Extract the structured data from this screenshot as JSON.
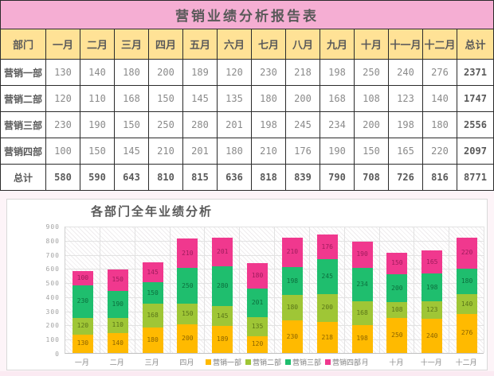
{
  "table": {
    "title": "营销业绩分析报告表",
    "columns": [
      "部门",
      "一月",
      "二月",
      "三月",
      "四月",
      "五月",
      "六月",
      "七月",
      "八月",
      "九月",
      "十月",
      "十一月",
      "十二月",
      "总计"
    ],
    "rows": [
      {
        "label": "营销一部",
        "values": [
          130,
          140,
          180,
          200,
          189,
          120,
          230,
          218,
          198,
          250,
          240,
          276
        ],
        "total": 2371
      },
      {
        "label": "营销二部",
        "values": [
          120,
          110,
          168,
          150,
          145,
          135,
          180,
          200,
          168,
          108,
          123,
          140
        ],
        "total": 1747
      },
      {
        "label": "营销三部",
        "values": [
          230,
          190,
          150,
          250,
          280,
          201,
          198,
          245,
          234,
          200,
          198,
          180
        ],
        "total": 2556
      },
      {
        "label": "营销四部",
        "values": [
          100,
          150,
          145,
          210,
          201,
          180,
          210,
          176,
          190,
          150,
          165,
          220
        ],
        "total": 2097
      }
    ],
    "grand_total_row": {
      "label": "总计",
      "values": [
        580,
        590,
        643,
        810,
        815,
        636,
        818,
        839,
        790,
        708,
        726,
        816
      ],
      "total": 8771
    }
  },
  "chart_data": {
    "type": "bar",
    "stacked": true,
    "title": "各部门全年业绩分析",
    "categories": [
      "一月",
      "二月",
      "三月",
      "四月",
      "五月",
      "六月",
      "七月",
      "八月",
      "九月",
      "十月",
      "十一月",
      "十二月"
    ],
    "series": [
      {
        "name": "营销一部",
        "color": "#ffba00",
        "label_color": "#8b6400",
        "values": [
          130,
          140,
          180,
          200,
          189,
          120,
          230,
          218,
          198,
          250,
          240,
          276
        ]
      },
      {
        "name": "营销二部",
        "color": "#9fc636",
        "label_color": "#5a7519",
        "values": [
          120,
          110,
          168,
          150,
          145,
          135,
          180,
          200,
          168,
          108,
          123,
          140
        ]
      },
      {
        "name": "营销三部",
        "color": "#1fbe6e",
        "label_color": "#0c6e3d",
        "values": [
          230,
          190,
          150,
          250,
          280,
          201,
          198,
          245,
          234,
          200,
          198,
          180
        ]
      },
      {
        "name": "营销四部",
        "color": "#f0388e",
        "label_color": "#9e1c5c",
        "values": [
          100,
          150,
          145,
          210,
          201,
          180,
          210,
          176,
          190,
          150,
          165,
          220
        ]
      }
    ],
    "ylim": [
      0,
      900
    ],
    "ytick_step": 100,
    "yticks": [
      0,
      100,
      200,
      300,
      400,
      500,
      600,
      700,
      800,
      900
    ],
    "grid": true,
    "data_labels": true,
    "legend_position": "bottom-center",
    "plot_background": "diagonal-hatch"
  },
  "colors": {
    "title_band": "#f5aed3",
    "header_band": "#ffe296",
    "table_border": "#2b2b2b",
    "header_text": "#595959",
    "value_text": "#8a8a8a",
    "axis_text": "#a3a3a3",
    "page_background": "#fdf4f8"
  }
}
